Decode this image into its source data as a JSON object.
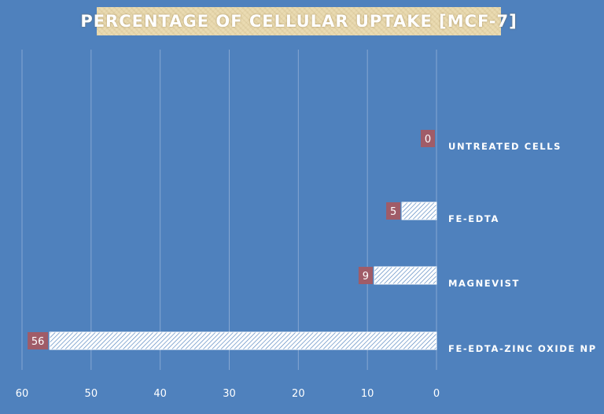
{
  "chart_data": {
    "type": "bar",
    "orientation": "horizontal",
    "x_axis": "reversed",
    "title": "PERCENTAGE OF CELLULAR UPTAKE [MCF-7]",
    "categories": [
      "UNTREATED CELLS",
      "FE-EDTA",
      "MAGNEVIST",
      "FE-EDTA-ZINC OXIDE NP"
    ],
    "values": [
      0,
      5,
      9,
      56
    ],
    "data_labels": [
      "0",
      "5",
      "9",
      "56"
    ],
    "xlim": [
      0,
      60
    ],
    "x_ticks": [
      60,
      50,
      40,
      30,
      20,
      10,
      0
    ],
    "x_tick_labels": [
      "60",
      "50",
      "40",
      "30",
      "20",
      "10",
      "0"
    ],
    "grid": "vertical",
    "legend": "none",
    "colors": {
      "background": "#4f81bd",
      "bar_fill": "#ffffff",
      "bar_hatch": "#4f81bd",
      "data_label_bg": "#a05c68",
      "text": "#ffffff",
      "title_bg": "#eadbb2"
    }
  }
}
